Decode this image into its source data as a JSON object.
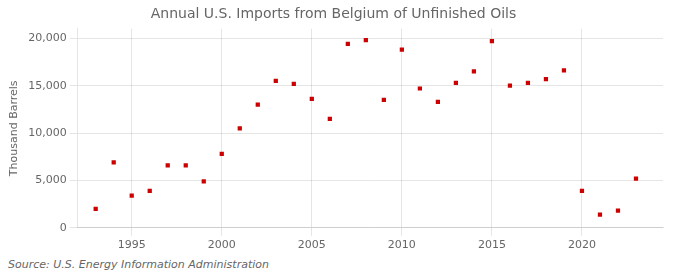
{
  "chart_data": {
    "type": "scatter",
    "title": "Annual U.S. Imports from Belgium of Unfinished Oils",
    "ylabel": "Thousand Barrels",
    "source": "Source: U.S. Energy Information Administration",
    "x": [
      1993,
      1994,
      1995,
      1996,
      1997,
      1998,
      1999,
      2000,
      2001,
      2002,
      2003,
      2004,
      2005,
      2006,
      2007,
      2008,
      2009,
      2010,
      2011,
      2012,
      2013,
      2014,
      2015,
      2016,
      2017,
      2018,
      2019,
      2020,
      2021,
      2022,
      2023
    ],
    "values": [
      2000,
      6900,
      3400,
      3900,
      6600,
      6600,
      4900,
      7800,
      10500,
      13000,
      15500,
      15200,
      13600,
      11500,
      19400,
      19800,
      13500,
      18800,
      14700,
      13300,
      15300,
      16500,
      19700,
      15000,
      15300,
      15700,
      16600,
      3900,
      1400,
      1800,
      5200
    ],
    "color": "#cc0000",
    "marker": "square",
    "xlim": [
      1992.0,
      2024.5
    ],
    "ylim": [
      0,
      21000
    ],
    "xticks": [
      1995,
      2000,
      2005,
      2010,
      2015,
      2020
    ],
    "yticks": [
      0,
      {
        "value": 5000,
        "label": "5,000"
      },
      {
        "value": 10000,
        "label": "10,000"
      },
      {
        "value": 15000,
        "label": "15,000"
      },
      {
        "value": 20000,
        "label": "20,000"
      }
    ],
    "grid": true
  }
}
